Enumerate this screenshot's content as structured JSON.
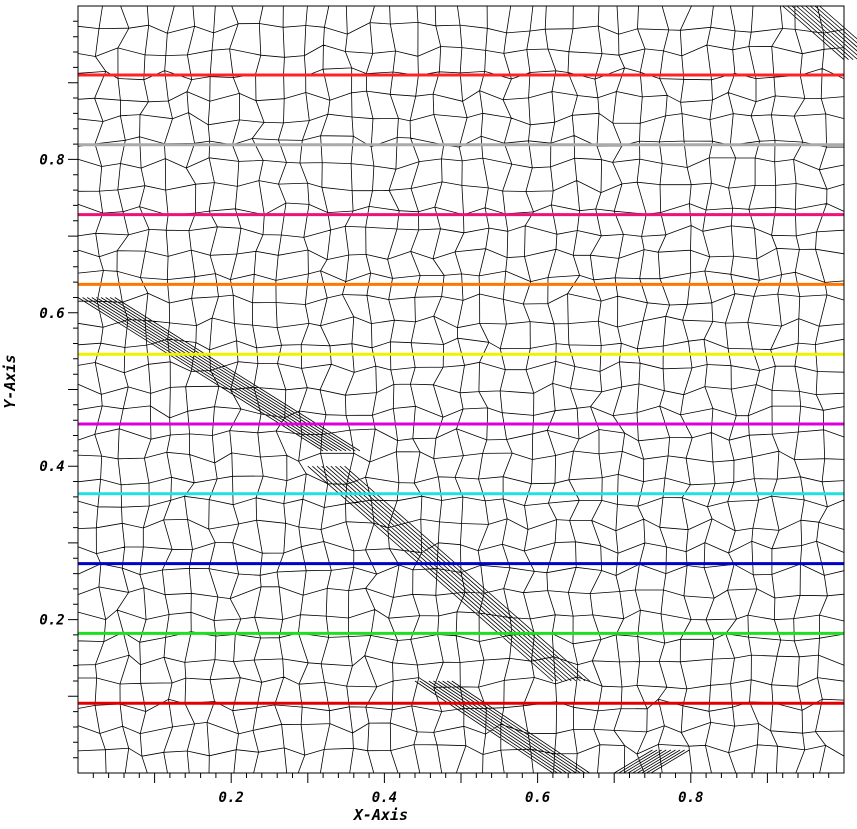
{
  "chart_data": {
    "type": "line",
    "title": "",
    "xlabel": "X-Axis",
    "ylabel": "Y-Axis",
    "xlim": [
      0,
      1
    ],
    "ylim": [
      0,
      1
    ],
    "xticks": [
      {
        "value": 0.2,
        "label": "0.2"
      },
      {
        "value": 0.4,
        "label": "0.4"
      },
      {
        "value": 0.6,
        "label": "0.6"
      },
      {
        "value": 0.8,
        "label": "0.8"
      }
    ],
    "yticks": [
      {
        "value": 0.2,
        "label": "0.2"
      },
      {
        "value": 0.4,
        "label": "0.4"
      },
      {
        "value": 0.6,
        "label": "0.6"
      },
      {
        "value": 0.8,
        "label": "0.8"
      }
    ],
    "background": "unstructured polygonal mesh",
    "series": [
      {
        "y": 0.091,
        "color": "#e00000"
      },
      {
        "y": 0.182,
        "color": "#22dd22"
      },
      {
        "y": 0.273,
        "color": "#0000cc"
      },
      {
        "y": 0.364,
        "color": "#22e0e0"
      },
      {
        "y": 0.455,
        "color": "#dd00dd"
      },
      {
        "y": 0.546,
        "color": "#f0f000"
      },
      {
        "y": 0.637,
        "color": "#ff7700"
      },
      {
        "y": 0.728,
        "color": "#ee1177"
      },
      {
        "y": 0.819,
        "color": "#aaaaaa"
      },
      {
        "y": 0.91,
        "color": "#ff2222"
      }
    ]
  }
}
